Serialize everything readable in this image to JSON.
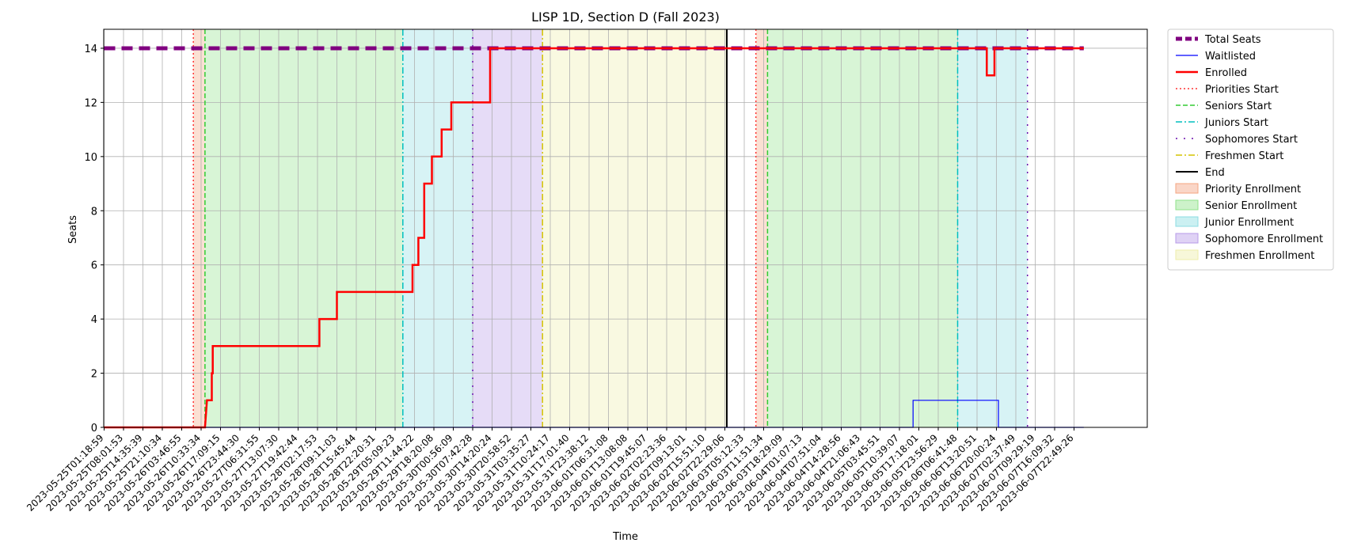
{
  "chart_data": {
    "type": "line",
    "title": "LISP 1D, Section D (Fall 2023)",
    "xlabel": "Time",
    "ylabel": "Seats",
    "ylim": [
      0,
      14.7
    ],
    "yticks": [
      0,
      2,
      4,
      6,
      8,
      10,
      12,
      14
    ],
    "xlim": [
      0,
      50.5
    ],
    "grid": true,
    "legend_position": "outside-right",
    "x_tick_labels": [
      "2023-05-25T01:18:59",
      "2023-05-25T08:01:53",
      "2023-05-25T14:35:39",
      "2023-05-25T21:10:34",
      "2023-05-26T03:46:55",
      "2023-05-26T10:33:34",
      "2023-05-26T17:09:15",
      "2023-05-26T23:44:30",
      "2023-05-27T06:31:55",
      "2023-05-27T13:07:30",
      "2023-05-27T19:42:44",
      "2023-05-28T02:17:53",
      "2023-05-28T09:11:03",
      "2023-05-28T15:45:44",
      "2023-05-28T22:20:31",
      "2023-05-29T05:09:23",
      "2023-05-29T11:44:22",
      "2023-05-29T18:20:08",
      "2023-05-30T00:56:09",
      "2023-05-30T07:42:28",
      "2023-05-30T14:20:24",
      "2023-05-30T20:58:52",
      "2023-05-31T03:35:27",
      "2023-05-31T10:24:17",
      "2023-05-31T17:01:40",
      "2023-05-31T23:38:12",
      "2023-06-01T06:31:08",
      "2023-06-01T13:08:08",
      "2023-06-01T19:45:07",
      "2023-06-02T02:23:36",
      "2023-06-02T09:13:01",
      "2023-06-02T15:51:10",
      "2023-06-02T22:29:06",
      "2023-06-03T05:12:33",
      "2023-06-03T11:51:34",
      "2023-06-03T18:29:09",
      "2023-06-04T01:07:13",
      "2023-06-04T07:51:04",
      "2023-06-04T14:28:56",
      "2023-06-04T21:06:43",
      "2023-06-05T03:45:51",
      "2023-06-05T10:39:07",
      "2023-06-05T17:18:01",
      "2023-06-05T23:56:29",
      "2023-06-06T06:41:48",
      "2023-06-06T13:20:51",
      "2023-06-06T20:00:24",
      "2023-06-07T02:37:49",
      "2023-06-07T09:29:19",
      "2023-06-07T16:09:32",
      "2023-06-07T22:49:26"
    ],
    "series": [
      {
        "name": "Total Seats",
        "color": "#800080",
        "style": "dashed-thick",
        "x": [
          0,
          50.5
        ],
        "y": [
          14,
          14
        ]
      },
      {
        "name": "Waitlisted",
        "color": "#0000ff",
        "style": "solid-thin",
        "x": [
          0,
          41.7,
          41.7,
          46.1,
          46.1,
          50.5
        ],
        "y": [
          0,
          0,
          1,
          1,
          0,
          0
        ]
      },
      {
        "name": "Enrolled",
        "color": "#ff0000",
        "style": "solid-thick",
        "x": [
          0,
          5.2,
          5.3,
          5.55,
          5.55,
          5.6,
          5.6,
          11.1,
          11.1,
          12.0,
          12.0,
          15.9,
          15.9,
          16.2,
          16.2,
          16.5,
          16.5,
          16.9,
          16.9,
          17.4,
          17.4,
          17.9,
          17.9,
          19.9,
          19.9,
          20.2,
          20.2,
          34.4,
          34.4,
          45.5,
          45.5,
          45.9,
          45.9,
          50.5
        ],
        "y": [
          0,
          0,
          1,
          1,
          2,
          2,
          3,
          3,
          4,
          4,
          5,
          5,
          6,
          6,
          7,
          7,
          9,
          9,
          10,
          10,
          11,
          11,
          12,
          12,
          14,
          14,
          14,
          14,
          14,
          14,
          13,
          13,
          14,
          14
        ]
      }
    ],
    "vertical_lines": [
      {
        "name": "Priorities Start",
        "color": "#ff3333",
        "style": "dotted",
        "x": [
          4.6,
          33.6
        ]
      },
      {
        "name": "Seniors Start",
        "color": "#33cc33",
        "style": "dashed",
        "x": [
          5.2,
          34.2
        ]
      },
      {
        "name": "Juniors Start",
        "color": "#00bfbf",
        "style": "dashdot",
        "x": [
          15.4,
          44.0
        ]
      },
      {
        "name": "Sophomores Start",
        "color": "#6a0dad",
        "style": "loosedot",
        "x": [
          19.0,
          47.6
        ]
      },
      {
        "name": "Freshmen Start",
        "color": "#d4c300",
        "style": "dashdot",
        "x": [
          22.6
        ]
      },
      {
        "name": "End",
        "color": "#000000",
        "style": "solid",
        "x": [
          32.1
        ]
      }
    ],
    "bands": [
      {
        "name": "Priority Enrollment",
        "color": "#f4a582",
        "ranges": [
          [
            4.6,
            5.2
          ],
          [
            33.6,
            34.2
          ]
        ]
      },
      {
        "name": "Senior Enrollment",
        "color": "#90e28a",
        "ranges": [
          [
            5.2,
            15.4
          ],
          [
            34.2,
            44.0
          ]
        ]
      },
      {
        "name": "Junior Enrollment",
        "color": "#8cdde3",
        "ranges": [
          [
            15.4,
            19.0
          ],
          [
            44.0,
            47.6
          ]
        ]
      },
      {
        "name": "Sophomore Enrollment",
        "color": "#b79be8",
        "ranges": [
          [
            19.0,
            22.6
          ]
        ]
      },
      {
        "name": "Freshmen Enrollment",
        "color": "#eeeeaa",
        "ranges": [
          [
            22.6,
            32.1
          ]
        ]
      }
    ]
  }
}
